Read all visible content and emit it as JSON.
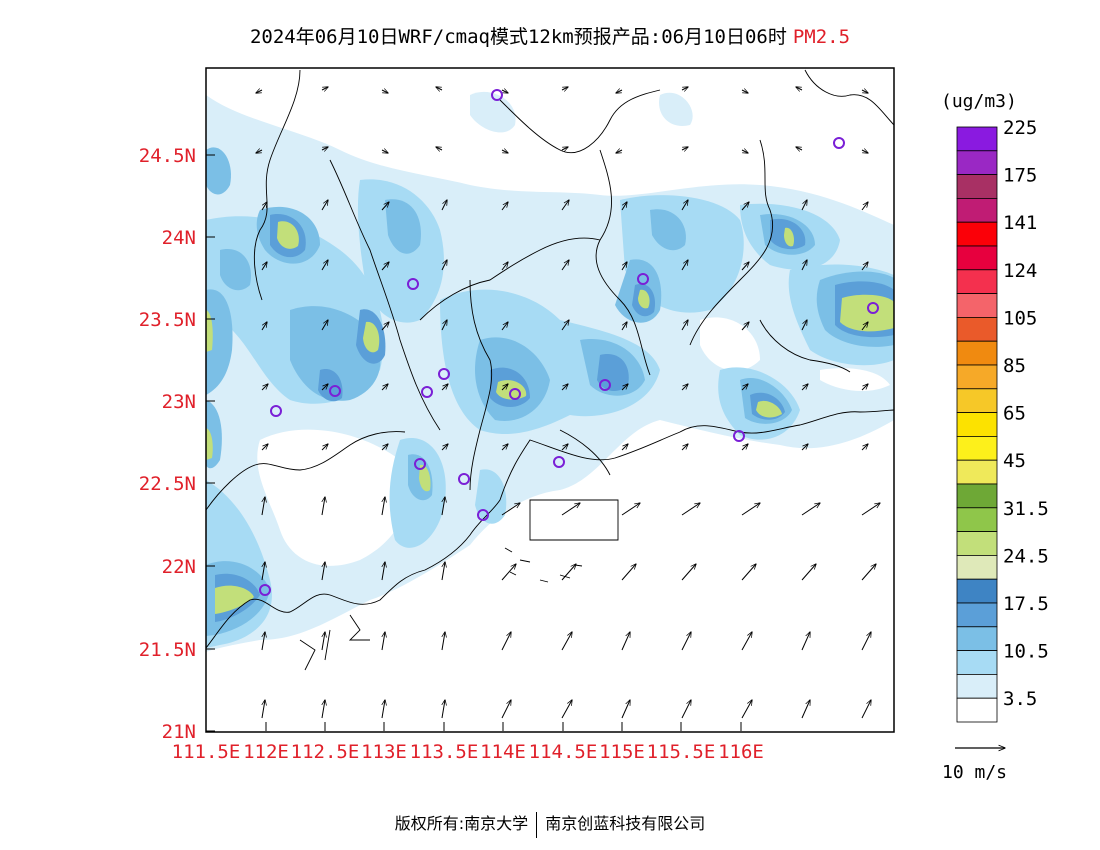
{
  "header": {
    "title_main": "2024年06月10日WRF/cmaq模式12km预报产品:06月10日06时",
    "title_variable": "PM2.5"
  },
  "map": {
    "lat_labels": [
      "24.5N",
      "24N",
      "23.5N",
      "23N",
      "22.5N",
      "22N",
      "21.5N",
      "21N"
    ],
    "lon_labels": [
      "111.5E",
      "112E",
      "112.5E",
      "113E",
      "113.5E",
      "114E",
      "114.5E",
      "115E",
      "115.5E",
      "116E"
    ],
    "axis_label_color": "#e0202a",
    "lat_range": [
      21,
      25
    ],
    "lon_range": [
      111.5,
      117.1
    ]
  },
  "legend": {
    "unit": "(ug/m3)",
    "levels": [
      "3.5",
      "10.5",
      "17.5",
      "24.5",
      "31.5",
      "45",
      "65",
      "85",
      "105",
      "124",
      "141",
      "175",
      "225"
    ],
    "colors": [
      "#ffffff",
      "#d9eef9",
      "#a7dbf4",
      "#7bbfe6",
      "#5b9fd8",
      "#3e84c4",
      "#dfe9b9",
      "#c2df7a",
      "#8fc64a",
      "#6ea836",
      "#efe95a",
      "#fdf01b",
      "#fce200",
      "#f6c828",
      "#f6a928",
      "#f08a10",
      "#ea5a2a",
      "#f4646a",
      "#f4304e",
      "#e7003e",
      "#fb0008",
      "#c01c74",
      "#a83064",
      "#9a28c4",
      "#8a1ae0"
    ],
    "wind_ref": "10 m/s"
  },
  "footer": {
    "left": "版权所有:南京大学",
    "right": "南京创蓝科技有限公司"
  }
}
